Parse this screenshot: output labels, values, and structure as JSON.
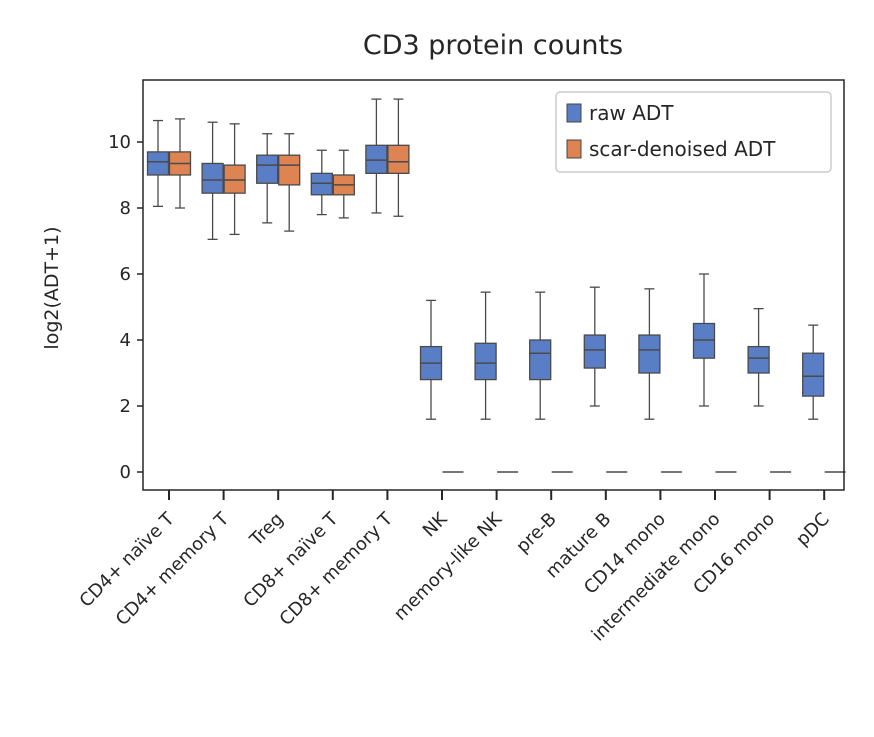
{
  "chart_data": {
    "type": "boxplot",
    "title": "CD3 protein counts",
    "xlabel": "",
    "ylabel": "log2(ADT+1)",
    "ylim": [
      -0.55,
      11.9
    ],
    "yticks": [
      0,
      2,
      4,
      6,
      8,
      10
    ],
    "grid": false,
    "legend_position": "top-right",
    "categories": [
      "CD4+ naïve T",
      "CD4+ memory T",
      "Treg",
      "CD8+ naïve T",
      "CD8+ memory T",
      "NK",
      "memory-like NK",
      "pre-B",
      "mature B",
      "CD14 mono",
      "intermediate mono",
      "CD16 mono",
      "pDC"
    ],
    "series": [
      {
        "name": "raw ADT",
        "color": "#5a7ec5",
        "boxes": [
          {
            "whislo": 8.05,
            "q1": 9.0,
            "med": 9.4,
            "q3": 9.7,
            "whishi": 10.65
          },
          {
            "whislo": 7.05,
            "q1": 8.45,
            "med": 8.85,
            "q3": 9.35,
            "whishi": 10.6
          },
          {
            "whislo": 7.55,
            "q1": 8.75,
            "med": 9.3,
            "q3": 9.6,
            "whishi": 10.25
          },
          {
            "whislo": 7.8,
            "q1": 8.4,
            "med": 8.75,
            "q3": 9.05,
            "whishi": 9.75
          },
          {
            "whislo": 7.85,
            "q1": 9.05,
            "med": 9.45,
            "q3": 9.9,
            "whishi": 11.3
          },
          {
            "whislo": 1.6,
            "q1": 2.8,
            "med": 3.3,
            "q3": 3.8,
            "whishi": 5.2
          },
          {
            "whislo": 1.6,
            "q1": 2.8,
            "med": 3.3,
            "q3": 3.9,
            "whishi": 5.45
          },
          {
            "whislo": 1.6,
            "q1": 2.8,
            "med": 3.6,
            "q3": 4.0,
            "whishi": 5.45
          },
          {
            "whislo": 2.0,
            "q1": 3.15,
            "med": 3.7,
            "q3": 4.15,
            "whishi": 5.6
          },
          {
            "whislo": 1.6,
            "q1": 3.0,
            "med": 3.7,
            "q3": 4.15,
            "whishi": 5.55
          },
          {
            "whislo": 2.0,
            "q1": 3.45,
            "med": 4.0,
            "q3": 4.5,
            "whishi": 6.0
          },
          {
            "whislo": 2.0,
            "q1": 3.0,
            "med": 3.45,
            "q3": 3.8,
            "whishi": 4.95
          },
          {
            "whislo": 1.6,
            "q1": 2.3,
            "med": 2.9,
            "q3": 3.6,
            "whishi": 4.45
          }
        ]
      },
      {
        "name": "scar-denoised ADT",
        "color": "#dd8452",
        "boxes": [
          {
            "whislo": 8.0,
            "q1": 9.0,
            "med": 9.35,
            "q3": 9.7,
            "whishi": 10.7
          },
          {
            "whislo": 7.2,
            "q1": 8.45,
            "med": 8.85,
            "q3": 9.3,
            "whishi": 10.55
          },
          {
            "whislo": 7.3,
            "q1": 8.7,
            "med": 9.3,
            "q3": 9.6,
            "whishi": 10.25
          },
          {
            "whislo": 7.7,
            "q1": 8.4,
            "med": 8.7,
            "q3": 9.0,
            "whishi": 9.75
          },
          {
            "whislo": 7.75,
            "q1": 9.05,
            "med": 9.4,
            "q3": 9.9,
            "whishi": 11.3
          },
          {
            "whislo": 0,
            "q1": 0,
            "med": 0,
            "q3": 0,
            "whishi": 0
          },
          {
            "whislo": 0,
            "q1": 0,
            "med": 0,
            "q3": 0,
            "whishi": 0
          },
          {
            "whislo": 0,
            "q1": 0,
            "med": 0,
            "q3": 0,
            "whishi": 0
          },
          {
            "whislo": 0,
            "q1": 0,
            "med": 0,
            "q3": 0,
            "whishi": 0
          },
          {
            "whislo": 0,
            "q1": 0,
            "med": 0,
            "q3": 0,
            "whishi": 0
          },
          {
            "whislo": 0,
            "q1": 0,
            "med": 0,
            "q3": 0,
            "whishi": 0
          },
          {
            "whislo": 0,
            "q1": 0,
            "med": 0,
            "q3": 0,
            "whishi": 0
          },
          {
            "whislo": 0,
            "q1": 0,
            "med": 0,
            "q3": 0,
            "whishi": 0
          }
        ]
      }
    ]
  }
}
